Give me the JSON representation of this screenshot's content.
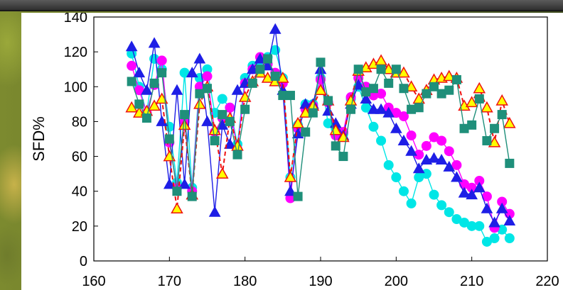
{
  "chart_data": {
    "type": "scatter",
    "title": "",
    "xlabel": "",
    "ylabel": "SFD%",
    "xlim": [
      160,
      220
    ],
    "ylim": [
      0,
      140
    ],
    "xticks": [
      160,
      170,
      180,
      190,
      200,
      210,
      220
    ],
    "yticks": [
      0,
      20,
      40,
      60,
      80,
      100,
      120,
      140
    ],
    "legend": "none",
    "grid": false,
    "series": [
      {
        "color": "#00e6e6",
        "marker": "circle",
        "line": "solid",
        "x": [
          165,
          166,
          167,
          168,
          169,
          170,
          171,
          172,
          173,
          174,
          175,
          176,
          177,
          178,
          179,
          180,
          181,
          182,
          183,
          184,
          185,
          186,
          187,
          188,
          189,
          190,
          191,
          192,
          193,
          194,
          195,
          196,
          197,
          198,
          199,
          200,
          201,
          202,
          203,
          204,
          205,
          206,
          207,
          208,
          209,
          210,
          211,
          212,
          213,
          214,
          215
        ],
        "y": [
          119,
          100,
          85,
          116,
          110,
          77,
          45,
          108,
          42,
          105,
          110,
          85,
          93,
          88,
          67,
          105,
          112,
          113,
          117,
          121,
          105,
          48,
          78,
          90,
          90,
          105,
          79,
          76,
          73,
          93,
          100,
          88,
          77,
          69,
          55,
          48,
          40,
          33,
          48,
          50,
          38,
          32,
          28,
          24,
          22,
          20,
          20,
          11,
          13,
          18,
          13
        ]
      },
      {
        "color": "#ff00ff",
        "marker": "circle",
        "line": "solid",
        "x": [
          165,
          166,
          167,
          168,
          169,
          170,
          171,
          172,
          173,
          174,
          175,
          176,
          177,
          178,
          179,
          180,
          181,
          182,
          183,
          184,
          185,
          186,
          187,
          188,
          189,
          190,
          191,
          192,
          193,
          194,
          195,
          196,
          197,
          198,
          199,
          200,
          201,
          202,
          203,
          204,
          205,
          206,
          207,
          208,
          209,
          210,
          211,
          212,
          213,
          214,
          215
        ],
        "y": [
          112,
          98,
          85,
          101,
          115,
          68,
          42,
          80,
          40,
          100,
          106,
          74,
          82,
          88,
          64,
          102,
          110,
          117,
          113,
          108,
          102,
          36,
          76,
          87,
          89,
          104,
          91,
          72,
          74,
          94,
          105,
          100,
          95,
          96,
          88,
          85,
          83,
          72,
          61,
          66,
          71,
          69,
          63,
          55,
          44,
          42,
          46,
          37,
          19,
          34,
          27
        ]
      },
      {
        "color": "#1e1ee6",
        "marker": "triangle",
        "line": "solid",
        "x": [
          165,
          166,
          167,
          168,
          169,
          170,
          171,
          172,
          173,
          174,
          175,
          176,
          177,
          178,
          179,
          180,
          181,
          182,
          183,
          184,
          185,
          186,
          187,
          188,
          189,
          190,
          191,
          192,
          193,
          194,
          195,
          196,
          197,
          198,
          199,
          200,
          201,
          202,
          203,
          204,
          205,
          206,
          207,
          208,
          209,
          210,
          211,
          212,
          213,
          214,
          215
        ],
        "y": [
          123,
          108,
          98,
          125,
          80,
          44,
          98,
          44,
          108,
          116,
          80,
          28,
          78,
          67,
          98,
          102,
          110,
          116,
          112,
          133,
          98,
          40,
          73,
          90,
          90,
          110,
          86,
          79,
          72,
          90,
          101,
          93,
          87,
          87,
          85,
          76,
          69,
          63,
          53,
          58,
          59,
          58,
          54,
          48,
          39,
          38,
          42,
          30,
          22,
          30,
          23
        ]
      },
      {
        "color": "#ffff00",
        "stroke": "#ee1111",
        "marker": "triangle",
        "line": "dashed",
        "x": [
          165,
          166,
          167,
          168,
          169,
          170,
          171,
          172,
          173,
          174,
          175,
          176,
          177,
          178,
          179,
          180,
          181,
          182,
          183,
          184,
          185,
          186,
          187,
          188,
          189,
          190,
          191,
          192,
          193,
          194,
          195,
          196,
          197,
          198,
          199,
          200,
          201,
          202,
          203,
          204,
          205,
          206,
          207,
          208,
          209,
          210,
          211,
          212,
          213,
          214,
          215
        ],
        "y": [
          88,
          85,
          86,
          89,
          93,
          60,
          30,
          78,
          38,
          90,
          100,
          75,
          50,
          82,
          66,
          94,
          103,
          108,
          105,
          103,
          105,
          48,
          79,
          85,
          89,
          98,
          92,
          75,
          71,
          92,
          109,
          111,
          113,
          115,
          110,
          108,
          108,
          100,
          93,
          98,
          104,
          105,
          106,
          105,
          89,
          91,
          99,
          88,
          68,
          92,
          79
        ]
      },
      {
        "color": "#1f8f7a",
        "marker": "square",
        "line": "solid",
        "x": [
          165,
          166,
          167,
          168,
          169,
          170,
          171,
          172,
          173,
          174,
          175,
          176,
          177,
          178,
          179,
          180,
          181,
          182,
          183,
          184,
          185,
          186,
          187,
          188,
          189,
          190,
          191,
          192,
          193,
          194,
          195,
          196,
          197,
          198,
          199,
          200,
          201,
          202,
          203,
          204,
          205,
          206,
          207,
          208,
          209,
          210,
          211,
          212,
          213,
          214,
          215
        ],
        "y": [
          103,
          90,
          82,
          102,
          108,
          70,
          40,
          84,
          37,
          96,
          99,
          69,
          84,
          80,
          61,
          87,
          102,
          110,
          116,
          106,
          95,
          95,
          37,
          74,
          85,
          114,
          92,
          66,
          60,
          87,
          110,
          97,
          99,
          110,
          102,
          110,
          99,
          87,
          88,
          96,
          100,
          96,
          98,
          104,
          76,
          78,
          93,
          69,
          76,
          84,
          56
        ]
      }
    ]
  }
}
